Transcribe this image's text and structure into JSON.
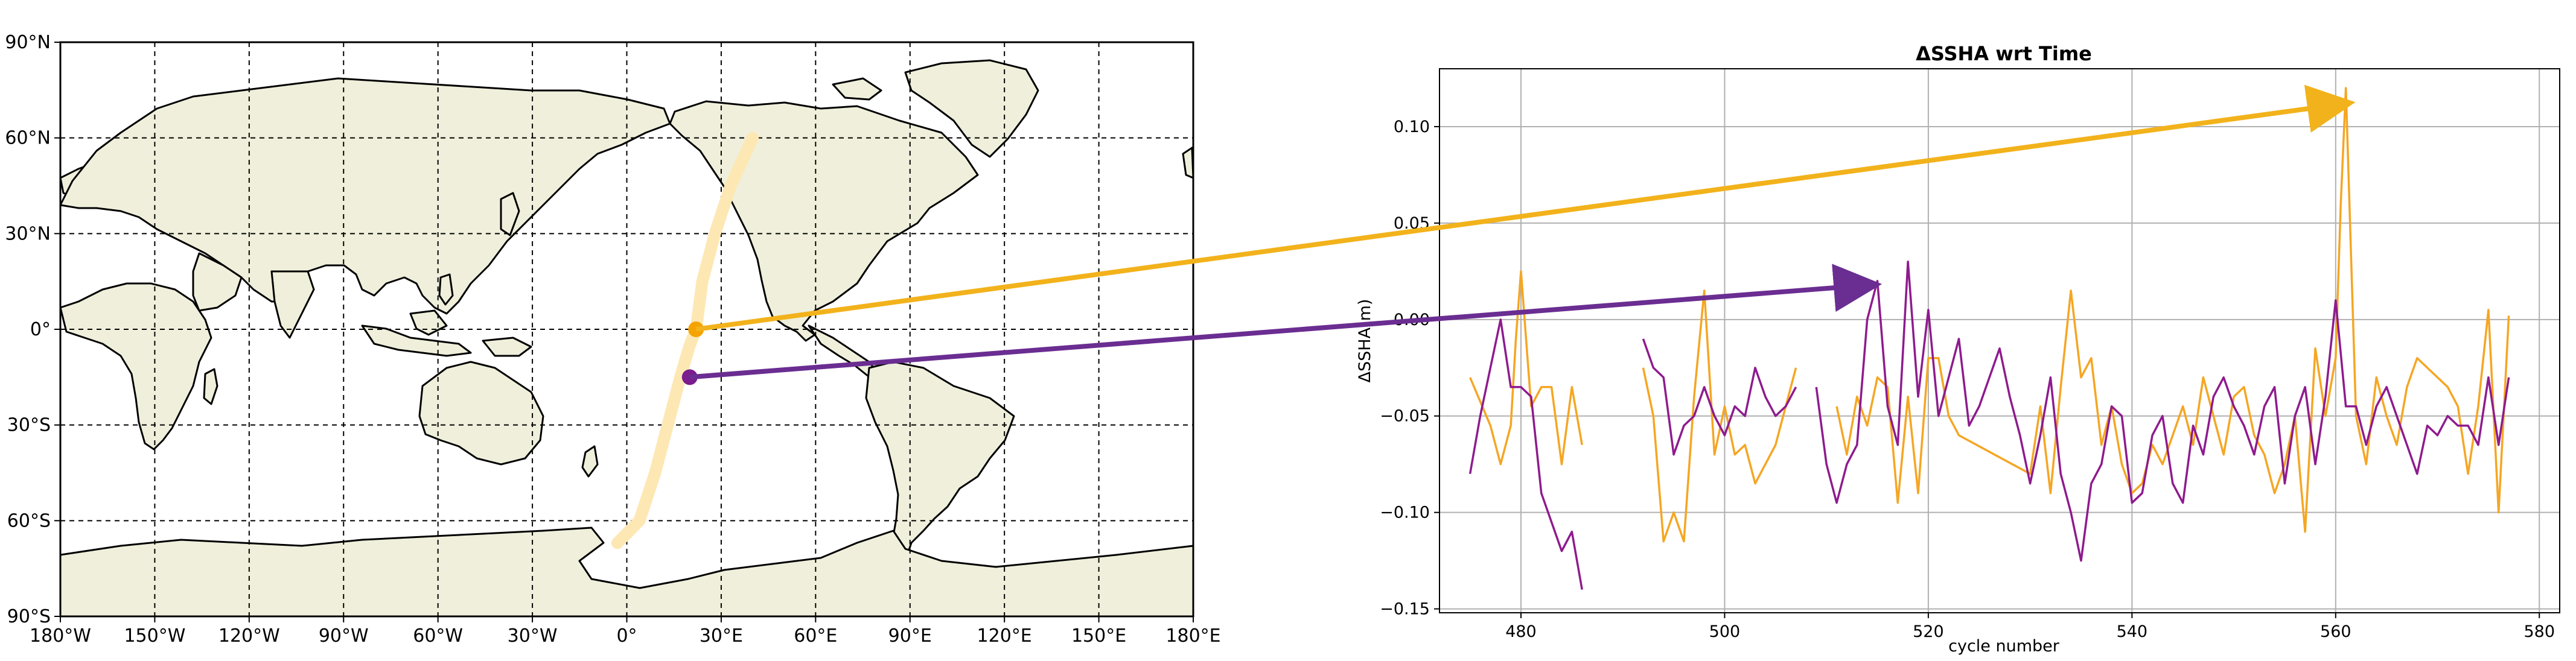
{
  "chart_data": [
    {
      "type": "map",
      "projection": "plate-carree",
      "xlim": [
        -180,
        180
      ],
      "ylim": [
        -90,
        90
      ],
      "grid": true,
      "grid_style": "dashed",
      "xticks": [
        -180,
        -150,
        -120,
        -90,
        -60,
        -30,
        0,
        30,
        60,
        90,
        120,
        150,
        180
      ],
      "xtick_labels": [
        "180°W",
        "150°W",
        "120°W",
        "90°W",
        "60°W",
        "30°W",
        "0°",
        "30°E",
        "60°E",
        "90°E",
        "120°E",
        "150°E",
        "180°E"
      ],
      "yticks": [
        90,
        60,
        30,
        0,
        -30,
        -60,
        -90
      ],
      "ytick_labels": [
        "90°N",
        "60°N",
        "30°N",
        "0°",
        "30°S",
        "60°S",
        "90°S"
      ],
      "land_color": "#efefdb",
      "ocean_color": "#ffffff",
      "track": {
        "color": "#fde8b4",
        "points": [
          [
            -3,
            -67
          ],
          [
            4,
            -60
          ],
          [
            9,
            -45
          ],
          [
            13,
            -30
          ],
          [
            17,
            -15
          ],
          [
            20,
            -5
          ],
          [
            22,
            0
          ],
          [
            24,
            15
          ],
          [
            28,
            30
          ],
          [
            33,
            45
          ],
          [
            40,
            60
          ]
        ]
      },
      "markers": [
        {
          "lon": 22,
          "lat": 0,
          "color": "#f5a300"
        },
        {
          "lon": 20,
          "lat": -15,
          "color": "#7b1c8f"
        }
      ]
    },
    {
      "type": "line",
      "title": "ΔSSHA wrt Time",
      "xlabel": "cycle number",
      "ylabel": "ΔSSHA(m)",
      "xlim": [
        472,
        582
      ],
      "ylim": [
        -0.152,
        0.13
      ],
      "xticks": [
        480,
        500,
        520,
        540,
        560,
        580
      ],
      "xtick_labels": [
        "480",
        "500",
        "520",
        "540",
        "560",
        "580"
      ],
      "yticks": [
        0.1,
        0.05,
        0.0,
        -0.05,
        -0.1,
        -0.15
      ],
      "ytick_labels": [
        "0.10",
        "0.05",
        "0.00",
        "−0.05",
        "−0.10",
        "−0.15"
      ],
      "grid": true,
      "series": [
        {
          "color": "#f5a623",
          "segments": [
            {
              "x": [
                475,
                477,
                478,
                479,
                479.5,
                480,
                481,
                482,
                483,
                484,
                485,
                486
              ],
              "y": [
                -0.03,
                -0.055,
                -0.075,
                -0.055,
                -0.01,
                0.025,
                -0.045,
                -0.035,
                -0.035,
                -0.075,
                -0.035,
                -0.065
              ]
            },
            {
              "x": [
                492,
                493,
                494,
                495,
                496,
                497,
                498,
                499,
                500,
                501,
                502,
                503,
                504,
                505,
                506,
                507
              ],
              "y": [
                -0.025,
                -0.05,
                -0.115,
                -0.1,
                -0.115,
                -0.04,
                0.015,
                -0.07,
                -0.045,
                -0.07,
                -0.065,
                -0.085,
                -0.075,
                -0.065,
                -0.045,
                -0.025
              ]
            },
            {
              "x": [
                511,
                512,
                513,
                514,
                515,
                516,
                517,
                518,
                519,
                520,
                521,
                522,
                523,
                530,
                531,
                532,
                533,
                534,
                535,
                536,
                537,
                538,
                539,
                540,
                541,
                542,
                543,
                544,
                545,
                546,
                547,
                548,
                549,
                550,
                551,
                552,
                553,
                554,
                555,
                556,
                557,
                558,
                559,
                560,
                560.5,
                561,
                562,
                563,
                564,
                565,
                566,
                567,
                568,
                569,
                570,
                571,
                572,
                573,
                574,
                575,
                576,
                577
              ],
              "y": [
                -0.045,
                -0.07,
                -0.04,
                -0.055,
                -0.03,
                -0.035,
                -0.095,
                -0.04,
                -0.09,
                -0.02,
                -0.02,
                -0.05,
                -0.06,
                -0.08,
                -0.045,
                -0.09,
                -0.035,
                0.015,
                -0.03,
                -0.02,
                -0.065,
                -0.045,
                -0.075,
                -0.09,
                -0.085,
                -0.065,
                -0.075,
                -0.06,
                -0.045,
                -0.065,
                -0.03,
                -0.05,
                -0.07,
                -0.04,
                -0.035,
                -0.06,
                -0.07,
                -0.09,
                -0.075,
                -0.05,
                -0.11,
                -0.015,
                -0.05,
                -0.02,
                0.06,
                0.12,
                -0.05,
                -0.075,
                -0.03,
                -0.05,
                -0.065,
                -0.035,
                -0.02,
                -0.025,
                -0.03,
                -0.035,
                -0.045,
                -0.08,
                -0.045,
                0.005,
                -0.1,
                0.002
              ]
            }
          ]
        },
        {
          "color": "#8e1b8e",
          "segments": [
            {
              "x": [
                475,
                476,
                477,
                478,
                479,
                480,
                481,
                482,
                483,
                484,
                485,
                486
              ],
              "y": [
                -0.08,
                -0.05,
                -0.025,
                0.0,
                -0.035,
                -0.035,
                -0.04,
                -0.09,
                -0.105,
                -0.12,
                -0.11,
                -0.14
              ]
            },
            {
              "x": [
                492,
                493,
                494,
                495,
                496,
                497,
                498,
                499,
                500,
                501,
                502,
                503,
                504,
                505,
                506,
                507
              ],
              "y": [
                -0.01,
                -0.025,
                -0.03,
                -0.07,
                -0.055,
                -0.05,
                -0.035,
                -0.05,
                -0.06,
                -0.045,
                -0.05,
                -0.025,
                -0.04,
                -0.05,
                -0.045,
                -0.035
              ]
            },
            {
              "x": [
                509,
                510,
                511,
                512,
                513,
                514,
                515,
                516,
                517,
                518,
                519,
                520,
                521,
                522,
                523,
                524,
                525,
                526,
                527,
                528,
                529,
                530,
                531,
                532,
                533,
                534,
                535,
                536,
                537,
                538,
                539,
                540,
                541,
                542,
                543,
                544,
                545,
                546,
                547,
                548,
                549,
                550,
                551,
                552,
                553,
                554,
                555,
                556,
                557,
                558,
                559,
                560,
                561,
                562,
                563,
                564,
                565,
                566,
                567,
                568,
                569,
                570,
                571,
                572,
                573,
                574,
                575,
                576,
                577
              ],
              "y": [
                -0.035,
                -0.075,
                -0.095,
                -0.075,
                -0.065,
                0.0,
                0.02,
                -0.045,
                -0.065,
                0.03,
                -0.04,
                0.005,
                -0.05,
                -0.03,
                -0.01,
                -0.055,
                -0.045,
                -0.03,
                -0.015,
                -0.04,
                -0.06,
                -0.085,
                -0.06,
                -0.03,
                -0.08,
                -0.1,
                -0.125,
                -0.085,
                -0.075,
                -0.045,
                -0.05,
                -0.095,
                -0.09,
                -0.06,
                -0.05,
                -0.085,
                -0.095,
                -0.055,
                -0.07,
                -0.04,
                -0.03,
                -0.045,
                -0.055,
                -0.07,
                -0.045,
                -0.035,
                -0.085,
                -0.05,
                -0.035,
                -0.075,
                -0.04,
                0.01,
                -0.045,
                -0.045,
                -0.065,
                -0.045,
                -0.035,
                -0.05,
                -0.065,
                -0.08,
                -0.055,
                -0.06,
                -0.05,
                -0.055,
                -0.055,
                -0.065,
                -0.03,
                -0.065,
                -0.03
              ]
            }
          ]
        }
      ]
    }
  ],
  "connectors": [
    {
      "color": "#f2b21b",
      "from_lon": 22,
      "from_lat": 0,
      "to_x": 561,
      "to_y": 0.112
    },
    {
      "color": "#6a2d91",
      "from_lon": 20,
      "from_lat": -15,
      "to_x": 514.5,
      "to_y": 0.018
    }
  ]
}
